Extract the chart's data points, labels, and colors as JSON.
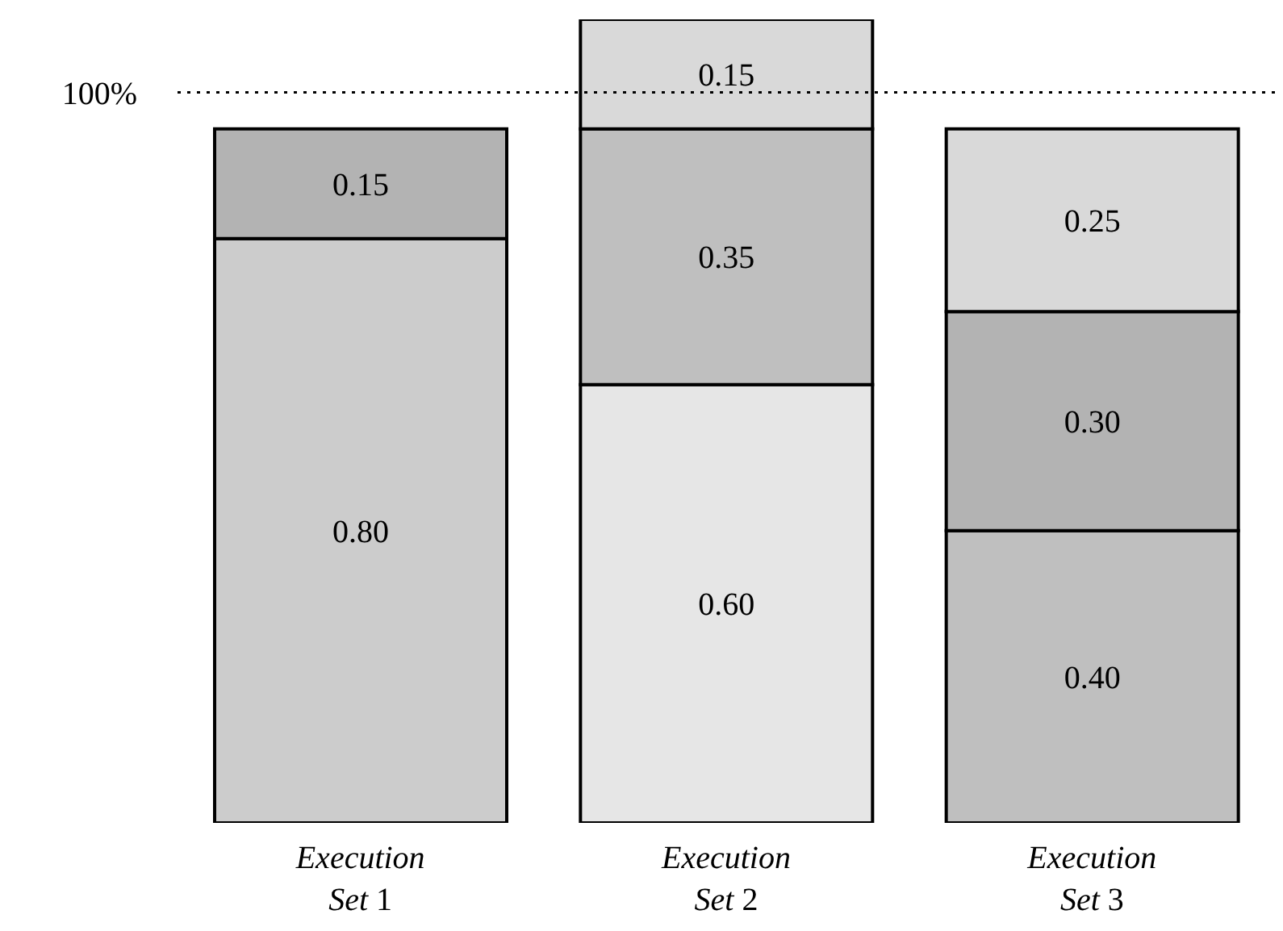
{
  "chart_data": {
    "type": "bar",
    "stacked": true,
    "categories": [
      "Execution Set 1",
      "Execution Set 2",
      "Execution Set 3"
    ],
    "series": [
      {
        "values": [
          0.8,
          0.6,
          0.4
        ],
        "colors": [
          "#cccccc",
          "#e6e6e6",
          "#bfbfbf"
        ],
        "value_labels": [
          "0.80",
          "0.60",
          "0.40"
        ]
      },
      {
        "values": [
          0.15,
          0.35,
          0.3
        ],
        "colors": [
          "#b3b3b3",
          "#bfbfbf",
          "#b3b3b3"
        ],
        "value_labels": [
          "0.15",
          "0.35",
          "0.30"
        ]
      },
      {
        "values": [
          null,
          0.15,
          0.25
        ],
        "colors": [
          "#d9d9d9",
          "#d9d9d9",
          "#d9d9d9"
        ],
        "value_labels": [
          null,
          "0.15",
          "0.25"
        ]
      }
    ],
    "ylim": [
      0,
      1.1
    ],
    "tick_labels": "x",
    "grid": false,
    "legend": false,
    "ref_lines": [
      {
        "axis": "y",
        "value": 1,
        "label": "100%",
        "color": "#000000",
        "line_style": "dotted"
      }
    ]
  }
}
